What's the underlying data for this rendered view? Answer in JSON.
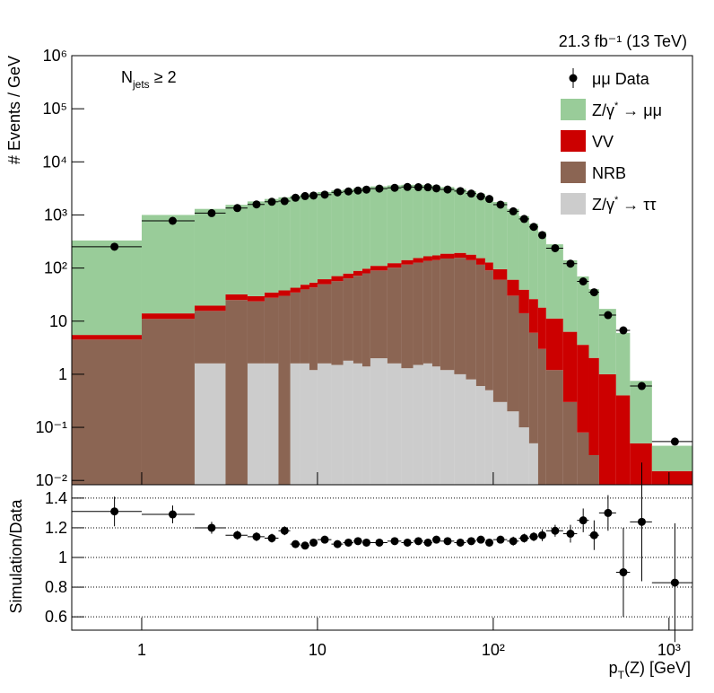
{
  "chart_data": [
    {
      "type": "stacked_histogram",
      "ylabel": "# Events / GeV",
      "annotation": [
        "N",
        "jets",
        " ≥ 2"
      ],
      "lumi": "21.3 fb⁻¹ (13 TeV)",
      "log_x": true,
      "log_y": true,
      "legend": "top-right",
      "xlim": [
        0.4,
        1360
      ],
      "ylim": [
        0.0083,
        1000000
      ],
      "yticks": [
        {
          "value": 0.01,
          "label": "10⁻²"
        },
        {
          "value": 0.1,
          "label": "10⁻¹"
        },
        1,
        10,
        {
          "value": 100,
          "label": "10²"
        },
        {
          "value": 1000,
          "label": "10³"
        },
        {
          "value": 10000,
          "label": "10⁴"
        },
        {
          "value": 100000,
          "label": "10⁵"
        },
        {
          "value": 1000000,
          "label": "10⁶"
        }
      ],
      "bins": [
        0.4,
        1,
        2,
        3,
        4,
        5,
        6,
        7,
        8,
        9,
        10,
        12,
        14,
        16,
        18,
        20,
        25,
        30,
        35,
        40,
        45,
        50,
        60,
        70,
        80,
        90,
        100,
        120,
        140,
        160,
        180,
        200,
        250,
        300,
        350,
        400,
        500,
        600,
        800,
        1360
      ],
      "series": [
        {
          "name": "Z/γ* → ττ",
          "color": "#cccccc",
          "values": [
            0,
            0,
            1.6,
            0,
            1.6,
            1.6,
            0,
            1.6,
            1.6,
            1.2,
            1.6,
            1.5,
            1.8,
            1.6,
            1.4,
            2,
            1.6,
            1.3,
            1.5,
            1.6,
            1.4,
            1.2,
            1,
            0.8,
            0.6,
            0.5,
            0.3,
            0.2,
            0.1,
            0.05,
            0,
            0,
            0,
            0,
            0,
            0,
            0,
            0,
            0
          ]
        },
        {
          "name": "NRB",
          "color": "#8b6553",
          "values": [
            4.5,
            11,
            14,
            25,
            22,
            26,
            30,
            33,
            38,
            42,
            48,
            55,
            62,
            70,
            78,
            88,
            100,
            115,
            125,
            135,
            140,
            150,
            155,
            140,
            115,
            90,
            60,
            30,
            14,
            6,
            3,
            1.2,
            0.3,
            0.08,
            0.03,
            0,
            0,
            0,
            0
          ]
        },
        {
          "name": "VV",
          "color": "#cc0000",
          "values": [
            1,
            3,
            4,
            7,
            6,
            7,
            8,
            8,
            9,
            10,
            12,
            14,
            15,
            17,
            18,
            20,
            22,
            25,
            28,
            30,
            32,
            35,
            37,
            38,
            38,
            37,
            35,
            30,
            25,
            20,
            15,
            10,
            6,
            3.5,
            2,
            1,
            0.4,
            0.05,
            0.015
          ]
        },
        {
          "name": "Z/γ* → μμ",
          "color": "#99cc99",
          "values": [
            325,
            986,
            1280,
            1518,
            1770,
            1965,
            2112,
            2257,
            2401,
            2497,
            2638,
            2830,
            2971,
            3111,
            3203,
            3340,
            3476,
            3559,
            3545,
            3483,
            3377,
            3164,
            2907,
            2621,
            2346,
            2072,
            1655,
            1240,
            911,
            654,
            462,
            269,
            134,
            66,
            38,
            16,
            5.6,
            0.7,
            0.03
          ]
        }
      ],
      "data": {
        "name": "μμ Data",
        "color": "#000000",
        "x": [
          0.7,
          1.5,
          2.5,
          3.5,
          4.5,
          5.5,
          6.5,
          7.5,
          8.5,
          9.5,
          11,
          13,
          15,
          17,
          19,
          22.5,
          27.5,
          32.5,
          37.5,
          42.5,
          47.5,
          55,
          65,
          75,
          85,
          95,
          110,
          130,
          150,
          170,
          190,
          225,
          275,
          325,
          375,
          450,
          550,
          700,
          1080
        ],
        "values": [
          252,
          775,
          1083,
          1348,
          1579,
          1770,
          1822,
          2110,
          2269,
          2318,
          2411,
          2661,
          2773,
          2883,
          3000,
          3136,
          3243,
          3364,
          3333,
          3318,
          3170,
          3018,
          2818,
          2523,
          2232,
          2000,
          1563,
          1171,
          841,
          596,
          417,
          237,
          121,
          56,
          35,
          13,
          6.7,
          0.6,
          0.054
        ]
      }
    },
    {
      "type": "ratio",
      "ylabel": "Simulation/Data",
      "xlabel": [
        "p",
        "T",
        "(Z) [GeV]"
      ],
      "log_x": true,
      "grid": true,
      "color": "#000000",
      "xlim": [
        0.4,
        1360
      ],
      "xticks": [
        1,
        10,
        {
          "value": 100,
          "label": "10²"
        },
        {
          "value": 1000,
          "label": "10³"
        }
      ],
      "ylim": [
        0.51,
        1.49
      ],
      "yticks": [
        0.6,
        0.8,
        1,
        1.2,
        1.4
      ],
      "x": [
        0.7,
        1.5,
        2.5,
        3.5,
        4.5,
        5.5,
        6.5,
        7.5,
        8.5,
        9.5,
        11,
        13,
        15,
        17,
        19,
        22.5,
        27.5,
        32.5,
        37.5,
        42.5,
        47.5,
        55,
        65,
        75,
        85,
        95,
        110,
        130,
        150,
        170,
        190,
        225,
        275,
        325,
        375,
        450,
        550,
        700,
        1080
      ],
      "values": [
        1.31,
        1.29,
        1.2,
        1.15,
        1.14,
        1.13,
        1.18,
        1.09,
        1.08,
        1.1,
        1.12,
        1.09,
        1.1,
        1.11,
        1.1,
        1.1,
        1.11,
        1.1,
        1.11,
        1.1,
        1.12,
        1.11,
        1.1,
        1.11,
        1.12,
        1.1,
        1.12,
        1.11,
        1.13,
        1.14,
        1.15,
        1.18,
        1.16,
        1.25,
        1.15,
        1.3,
        0.9,
        1.24,
        0.83
      ],
      "errors": [
        0.1,
        0.06,
        0.04,
        0.03,
        0.03,
        0.03,
        0.03,
        0.02,
        0.02,
        0.02,
        0.02,
        0.02,
        0.02,
        0.02,
        0.02,
        0.02,
        0.02,
        0.02,
        0.02,
        0.02,
        0.02,
        0.02,
        0.02,
        0.02,
        0.02,
        0.02,
        0.02,
        0.03,
        0.03,
        0.03,
        0.04,
        0.04,
        0.06,
        0.08,
        0.1,
        0.12,
        0.3,
        0.4,
        0.4
      ]
    }
  ]
}
